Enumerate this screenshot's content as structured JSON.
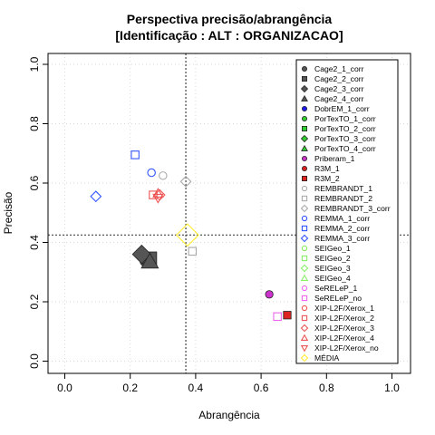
{
  "chart_data": {
    "type": "scatter",
    "title": "Perspectiva precisão/abrangência",
    "subtitle": "[Identificação : ALT : ORGANIZACAO]",
    "xlabel": "Abrangência",
    "ylabel": "Precisão",
    "xlim": [
      0,
      1
    ],
    "ylim": [
      0,
      1
    ],
    "xticks": [
      "0.0",
      "0.2",
      "0.4",
      "0.6",
      "0.8",
      "1.0"
    ],
    "yticks": [
      "0.0",
      "0.2",
      "0.4",
      "0.6",
      "0.8",
      "1.0"
    ],
    "grid": true,
    "legend_position": "right",
    "reference_lines": {
      "x": 0.37,
      "y": 0.425
    },
    "series": [
      {
        "name": "Cage2_1_corr",
        "shape": "circle",
        "color": "#555555",
        "filled": true,
        "x": 0.25,
        "y": 0.34
      },
      {
        "name": "Cage2_2_corr",
        "shape": "square",
        "color": "#555555",
        "filled": true,
        "x": 0.26,
        "y": 0.345
      },
      {
        "name": "Cage2_3_corr",
        "shape": "diamond",
        "color": "#555555",
        "filled": true,
        "x": 0.235,
        "y": 0.36
      },
      {
        "name": "Cage2_4_corr",
        "shape": "triangle",
        "color": "#555555",
        "filled": true,
        "x": 0.26,
        "y": 0.335
      },
      {
        "name": "DobrEM_1_corr",
        "shape": "circle",
        "color": "#1a1aff",
        "filled": true
      },
      {
        "name": "PorTexTO_1_corr",
        "shape": "circle",
        "color": "#33cc33",
        "filled": true
      },
      {
        "name": "PorTexTO_2_corr",
        "shape": "square",
        "color": "#33cc33",
        "filled": true
      },
      {
        "name": "PorTexTO_3_corr",
        "shape": "diamond",
        "color": "#33cc33",
        "filled": true
      },
      {
        "name": "PorTexTO_4_corr",
        "shape": "triangle",
        "color": "#33cc33",
        "filled": true
      },
      {
        "name": "Priberam_1",
        "shape": "circle",
        "color": "#cc33cc",
        "filled": true,
        "x": 0.625,
        "y": 0.225
      },
      {
        "name": "R3M_1",
        "shape": "circle",
        "color": "#dd2222",
        "filled": true
      },
      {
        "name": "R3M_2",
        "shape": "square",
        "color": "#dd2222",
        "filled": true,
        "x": 0.68,
        "y": 0.155
      },
      {
        "name": "REMBRANDT_1",
        "shape": "circle",
        "color": "#aaaaaa",
        "filled": false,
        "x": 0.3,
        "y": 0.625
      },
      {
        "name": "REMBRANDT_2",
        "shape": "square",
        "color": "#aaaaaa",
        "filled": false,
        "x": 0.39,
        "y": 0.37
      },
      {
        "name": "REMBRANDT_3_corr",
        "shape": "diamond",
        "color": "#aaaaaa",
        "filled": false,
        "x": 0.37,
        "y": 0.605
      },
      {
        "name": "REMMA_1_corr",
        "shape": "circle",
        "color": "#3355ff",
        "filled": false,
        "x": 0.265,
        "y": 0.635
      },
      {
        "name": "REMMA_2_corr",
        "shape": "square",
        "color": "#3355ff",
        "filled": false,
        "x": 0.215,
        "y": 0.695
      },
      {
        "name": "REMMA_3_corr",
        "shape": "diamond",
        "color": "#3355ff",
        "filled": false,
        "x": 0.095,
        "y": 0.555
      },
      {
        "name": "SEIGeo_1",
        "shape": "circle",
        "color": "#88ee66",
        "filled": false
      },
      {
        "name": "SEIGeo_2",
        "shape": "square",
        "color": "#88ee66",
        "filled": false
      },
      {
        "name": "SEIGeo_3",
        "shape": "diamond",
        "color": "#88ee66",
        "filled": false
      },
      {
        "name": "SEIGeo_4",
        "shape": "triangle",
        "color": "#88ee66",
        "filled": false
      },
      {
        "name": "SeRELeP_1",
        "shape": "circle",
        "color": "#ee66ee",
        "filled": false
      },
      {
        "name": "SeRELeP_no",
        "shape": "square",
        "color": "#ee66ee",
        "filled": false,
        "x": 0.65,
        "y": 0.15
      },
      {
        "name": "XIP-L2F/Xerox_1",
        "shape": "circle",
        "color": "#ee5555",
        "filled": false
      },
      {
        "name": "XIP-L2F/Xerox_2",
        "shape": "square",
        "color": "#ee5555",
        "filled": false,
        "x": 0.27,
        "y": 0.56
      },
      {
        "name": "XIP-L2F/Xerox_3",
        "shape": "diamond",
        "color": "#ee5555",
        "filled": false,
        "x": 0.29,
        "y": 0.56
      },
      {
        "name": "XIP-L2F/Xerox_4",
        "shape": "triangle",
        "color": "#ee5555",
        "filled": false,
        "x": 0.285,
        "y": 0.565
      },
      {
        "name": "XIP-L2F/Xerox_no",
        "shape": "triangle-down",
        "color": "#ee5555",
        "filled": false,
        "x": 0.285,
        "y": 0.55
      },
      {
        "name": "MÉDIA",
        "shape": "diamond",
        "color": "#ffee33",
        "filled": false,
        "x": 0.375,
        "y": 0.425
      }
    ]
  }
}
